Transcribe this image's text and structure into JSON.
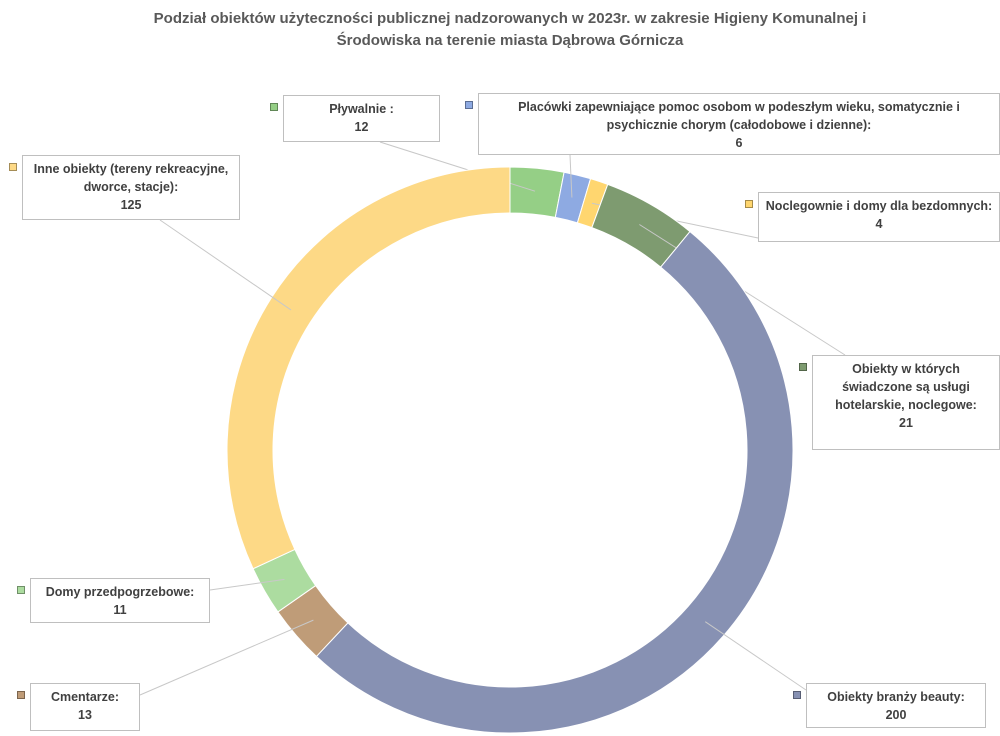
{
  "chart_data": {
    "type": "donut",
    "title": "Podział obiektów użyteczności publicznej nadzorowanych w 2023r. w zakresie Higieny Komunalnej i Środowiska na terenie miasta Dąbrowa Górnicza",
    "categories": [
      "Pływalnie  :",
      "Placówki zapewniające pomoc osobom w podeszłym wieku, somatycznie i psychicznie chorym (całodobowe i dzienne):",
      "Noclegownie i domy dla bezdomnych:",
      "Obiekty w których świadczone są usługi hotelarskie, noclegowe:",
      "Obiekty branży beauty:",
      "Cmentarze:",
      "Domy przedpogrzebowe:",
      "Inne obiekty  (tereny rekreacyjne, dworce, stacje):"
    ],
    "values": [
      12,
      6,
      4,
      21,
      200,
      13,
      11,
      125
    ],
    "colors": [
      "#95cf86",
      "#8eaae2",
      "#ffd66f",
      "#7e9b70",
      "#8791b3",
      "#bf9c78",
      "#acdca0",
      "#fdd986"
    ]
  }
}
